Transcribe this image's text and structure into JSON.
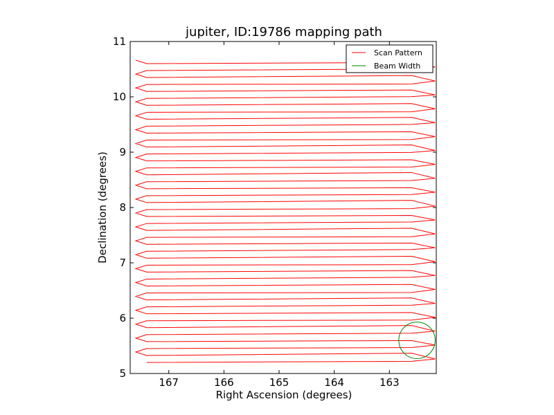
{
  "chart_data": {
    "type": "line",
    "title": "jupiter, ID:19786 mapping path",
    "xlabel": "Right Ascension (degrees)",
    "ylabel": "Declination (degrees)",
    "xlim": [
      167.7,
      162.15
    ],
    "ylim": [
      5,
      11
    ],
    "x_inverted": true,
    "xticks": [
      167,
      166,
      165,
      164,
      163
    ],
    "yticks": [
      5,
      6,
      7,
      8,
      9,
      10,
      11
    ],
    "grid": false,
    "legend": {
      "placement": "top-right",
      "entries": [
        {
          "label": "Scan Pattern",
          "color": "#ff0000"
        },
        {
          "label": "Beam Width",
          "color": "#008000"
        }
      ]
    },
    "series": [
      {
        "name": "Scan Pattern",
        "color": "#ff0000",
        "scan_pattern": {
          "type": "raster",
          "dec_start": 5.2,
          "dec_end": 10.6,
          "rows": 44,
          "ra_left_turn": 167.6,
          "ra_left": 167.4,
          "ra_right": 162.6,
          "ra_right_turn": 162.17
        }
      },
      {
        "name": "Beam Width",
        "color": "#008000",
        "circle": {
          "center_ra": 162.5,
          "center_dec": 5.6,
          "radius_deg": 0.33
        }
      }
    ]
  }
}
